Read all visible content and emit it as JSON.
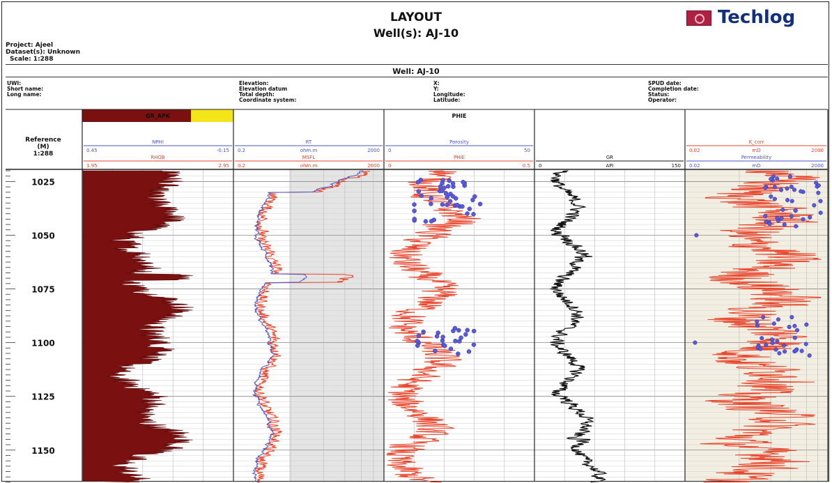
{
  "header": {
    "layout_label": "LAYOUT",
    "wells_line": "Well(s): AJ-10",
    "logo_text": "Techlog",
    "project": "Project: Ajeel",
    "datasets": "Dataset(s): Unknown",
    "scale": "Scale: 1:288",
    "well_banner": "Well: AJ-10"
  },
  "well_info": {
    "col1": [
      "UWI:",
      "Short name:",
      "Long name:"
    ],
    "col2": [
      "Elevation:",
      "Elevation datum",
      "Total depth:",
      "Coordinate system:"
    ],
    "col3": [
      "X:",
      "Y:",
      "Longitude:",
      "Latitude:"
    ],
    "col4": [
      "SPUD date:",
      "Completion date:",
      "Status:",
      "Operator:"
    ]
  },
  "colors": {
    "gr_fill": "#7a1010",
    "red_curve": "#e8442a",
    "blue_curve": "#4a55c8",
    "black_curve": "#111111",
    "header_yellow": "#f3e51a",
    "shade_track": "#e4e4e4",
    "k_track_bg": "#f2efe2"
  },
  "chart_data": {
    "type": "line",
    "reference_header": {
      "line1": "Reference",
      "line2": "(M)",
      "line3": "1:288"
    },
    "depth_range": [
      1020,
      1165
    ],
    "depth_ticks": [
      "1025",
      "1050",
      "1075",
      "1100",
      "1125",
      "1150"
    ],
    "tracks": [
      {
        "id": "t1",
        "banner": "GR_APK",
        "rows": [
          {
            "label": "NPHI",
            "left": "0.45",
            "right": "-0.15",
            "color": "blue"
          },
          {
            "label": "RHOB",
            "left": "1.95",
            "right": "2.95",
            "color": "red"
          }
        ]
      },
      {
        "id": "t2",
        "rows": [
          {
            "label": "RT",
            "mid": "ohm.m",
            "left": "0.2",
            "right": "2000",
            "color": "blue"
          },
          {
            "label": "MSFL",
            "mid": "ohm.m",
            "left": "0.2",
            "right": "2000",
            "color": "red"
          }
        ]
      },
      {
        "id": "t3",
        "banner": "PHIE",
        "rows": [
          {
            "label": "Porosity",
            "left": "0",
            "right": "50",
            "color": "blue"
          },
          {
            "label": "PHIE",
            "left": "0",
            "right": "0.5",
            "color": "red"
          }
        ]
      },
      {
        "id": "t4",
        "rows": [
          {
            "label": "GR",
            "mid": "API",
            "left": "0",
            "right": "150",
            "color": "black"
          }
        ]
      },
      {
        "id": "t5",
        "rows": [
          {
            "label": "K_corr",
            "mid": "mD",
            "left": "0.02",
            "right": "2000",
            "color": "red"
          },
          {
            "label": "Permeability",
            "mid": "mD",
            "left": "0.02",
            "right": "2000",
            "color": "blue"
          }
        ]
      }
    ],
    "series": [
      {
        "track": "t1",
        "kind": "gr_fill"
      },
      {
        "track": "t2",
        "kind": "resistivity_deep"
      },
      {
        "track": "t2",
        "kind": "resistivity_shallow"
      },
      {
        "track": "t3",
        "kind": "porosity_curve"
      },
      {
        "track": "t3",
        "kind": "core_porosity_points"
      },
      {
        "track": "t4",
        "kind": "gamma_ray"
      },
      {
        "track": "t5",
        "kind": "permeability_curve"
      },
      {
        "track": "t5",
        "kind": "core_permeability_points"
      }
    ]
  }
}
